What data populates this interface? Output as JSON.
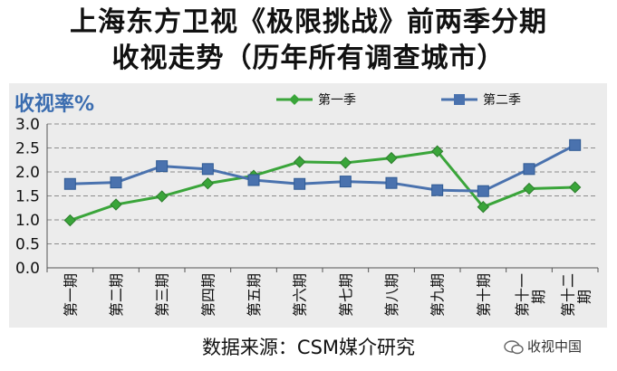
{
  "title_line1": "上海东方卫视《极限挑战》前两季分期",
  "title_line2": "收视走势（历年所有调查城市）",
  "source": "数据来源：CSM媒介研究",
  "watermark": "收视中国",
  "colors": {
    "series1": "#3aa53a",
    "series2": "#4a72ae",
    "ylabel": "#3b6db0",
    "panel": "#ececec",
    "grid": "#8c8c8c"
  },
  "chart_data": {
    "type": "line",
    "ylabel": "收视率%",
    "ylim": [
      0,
      3.0
    ],
    "yticks": [
      "0.0",
      "0.5",
      "1.0",
      "1.5",
      "2.0",
      "2.5",
      "3.0"
    ],
    "grid": true,
    "legend_position": "top",
    "categories": [
      "第一期",
      "第二期",
      "第三期",
      "第四期",
      "第五期",
      "第六期",
      "第七期",
      "第八期",
      "第九期",
      "第十期",
      "第十一期",
      "第十二期"
    ],
    "series": [
      {
        "name": "第一季",
        "marker": "diamond",
        "values": [
          0.99,
          1.32,
          1.49,
          1.76,
          1.92,
          2.21,
          2.19,
          2.29,
          2.43,
          1.27,
          1.65,
          1.68
        ]
      },
      {
        "name": "第二季",
        "marker": "square",
        "values": [
          1.75,
          1.78,
          2.12,
          2.06,
          1.83,
          1.75,
          1.8,
          1.77,
          1.62,
          1.6,
          2.06,
          2.56
        ]
      }
    ]
  }
}
